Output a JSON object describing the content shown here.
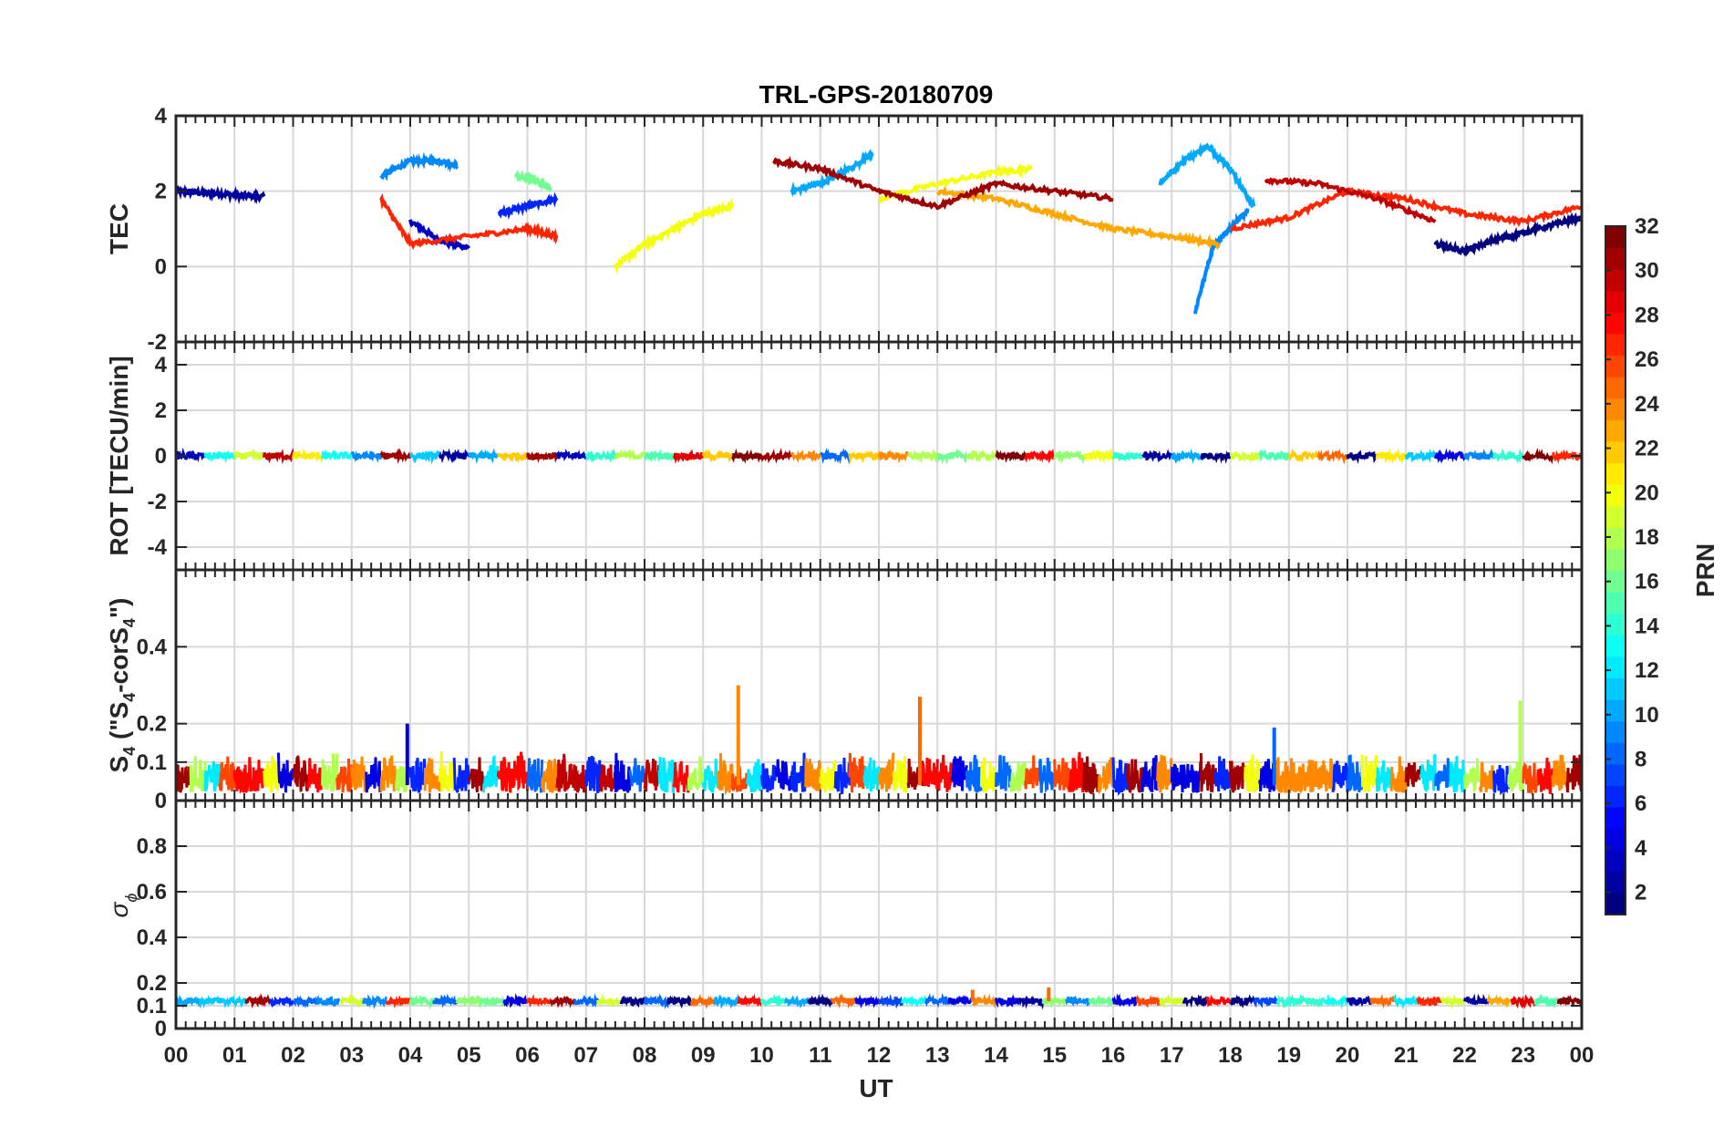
{
  "chart_data": {
    "type": "line",
    "title": "TRL-GPS-20180709",
    "xlabel": "UT",
    "x_ticks": [
      "00",
      "01",
      "02",
      "03",
      "04",
      "05",
      "06",
      "07",
      "08",
      "09",
      "10",
      "11",
      "12",
      "13",
      "14",
      "15",
      "16",
      "17",
      "18",
      "19",
      "20",
      "21",
      "22",
      "23",
      "00"
    ],
    "x_range_hours": [
      0,
      24
    ],
    "grid": true,
    "panels": [
      {
        "name": "TEC",
        "ylabel": "TEC",
        "ylim": [
          -2,
          4
        ],
        "y_ticks": [
          "-2",
          "0",
          "2",
          "4"
        ],
        "y_tick_values": [
          -2,
          0,
          2,
          4
        ],
        "series": [
          {
            "prn": 2,
            "x": [
              0,
              0.5,
              1,
              1.5
            ],
            "y": [
              2.0,
              1.95,
              1.9,
              1.85
            ]
          },
          {
            "prn": 3,
            "x": [
              4.0,
              4.5,
              5.0
            ],
            "y": [
              1.2,
              0.7,
              0.5
            ]
          },
          {
            "prn": 6,
            "x": [
              5.5,
              6.0,
              6.5
            ],
            "y": [
              1.4,
              1.6,
              1.8
            ]
          },
          {
            "prn": 9,
            "x": [
              3.5,
              4.0,
              4.5,
              4.8
            ],
            "y": [
              2.4,
              2.8,
              2.8,
              2.7
            ]
          },
          {
            "prn": 10,
            "x": [
              10.5,
              11.0,
              11.5,
              11.9
            ],
            "y": [
              2.0,
              2.2,
              2.6,
              3.0
            ]
          },
          {
            "prn": 9,
            "x": [
              17.4,
              17.7,
              18.0,
              18.3
            ],
            "y": [
              -1.2,
              0.5,
              1.0,
              1.5
            ]
          },
          {
            "prn": 10,
            "x": [
              16.8,
              17.2,
              17.6,
              18.0,
              18.4
            ],
            "y": [
              2.2,
              2.8,
              3.2,
              2.6,
              1.6
            ]
          },
          {
            "prn": 16,
            "x": [
              5.8,
              6.1,
              6.4
            ],
            "y": [
              2.4,
              2.3,
              2.1
            ]
          },
          {
            "prn": 20,
            "x": [
              7.5,
              8.0,
              8.5,
              9.0,
              9.5
            ],
            "y": [
              0.0,
              0.6,
              1.0,
              1.4,
              1.6
            ]
          },
          {
            "prn": 20,
            "x": [
              12.0,
              13.0,
              14.0,
              14.6
            ],
            "y": [
              1.8,
              2.2,
              2.5,
              2.6
            ]
          },
          {
            "prn": 23,
            "x": [
              13.0,
              14.0,
              15.0,
              16.0,
              17.0,
              17.8
            ],
            "y": [
              2.0,
              1.8,
              1.4,
              1.0,
              0.8,
              0.6
            ]
          },
          {
            "prn": 27,
            "x": [
              3.5,
              4.0,
              5.0,
              6.0,
              6.5
            ],
            "y": [
              1.8,
              0.6,
              0.8,
              1.0,
              0.8
            ]
          },
          {
            "prn": 27,
            "x": [
              18.0,
              19.0,
              20.0,
              21.0,
              22.0,
              23.0,
              24.0
            ],
            "y": [
              1.0,
              1.3,
              2.0,
              1.8,
              1.4,
              1.2,
              1.6
            ]
          },
          {
            "prn": 30,
            "x": [
              18.6,
              19.5,
              20.5,
              21.5
            ],
            "y": [
              2.3,
              2.2,
              1.8,
              1.2
            ]
          },
          {
            "prn": 31,
            "x": [
              10.2,
              11.0,
              12.0,
              13.0,
              14.0,
              15.0,
              16.0
            ],
            "y": [
              2.8,
              2.6,
              2.0,
              1.6,
              2.2,
              2.0,
              1.8
            ]
          },
          {
            "prn": 1,
            "x": [
              21.5,
              22.0,
              22.5,
              23.0,
              23.5,
              24.0
            ],
            "y": [
              0.6,
              0.4,
              0.7,
              0.9,
              1.1,
              1.3
            ]
          }
        ]
      },
      {
        "name": "ROT",
        "ylabel": "ROT [TECU/min]",
        "ylim": [
          -5,
          5
        ],
        "y_ticks": [
          "-4",
          "-2",
          "0",
          "2",
          "4"
        ],
        "y_tick_values": [
          -4,
          -2,
          0,
          2,
          4
        ],
        "baseline": 0
      },
      {
        "name": "S4",
        "ylabel": "S4 (\"S4-corS4\")",
        "ylabel_parts": [
          "S",
          "4",
          " (\"S",
          "4",
          "-corS",
          "4",
          "\")"
        ],
        "ylim": [
          0,
          0.6
        ],
        "y_ticks": [
          "0",
          "0.1",
          "0.2",
          "0.4"
        ],
        "y_tick_values": [
          0,
          0.1,
          0.2,
          0.4
        ],
        "typical_range": [
          0.02,
          0.12
        ],
        "spikes": [
          {
            "x": 3.95,
            "y": 0.2,
            "prn": 4
          },
          {
            "x": 9.6,
            "y": 0.3,
            "prn": 24
          },
          {
            "x": 12.7,
            "y": 0.27,
            "prn": 25
          },
          {
            "x": 18.75,
            "y": 0.19,
            "prn": 8
          },
          {
            "x": 22.95,
            "y": 0.26,
            "prn": 18
          }
        ]
      },
      {
        "name": "sigma_phi",
        "ylabel": "σ ϕ",
        "ylim": [
          0,
          1
        ],
        "y_ticks": [
          "0",
          "0.1",
          "0.2",
          "0.4",
          "0.6",
          "0.8"
        ],
        "y_tick_values": [
          0,
          0.1,
          0.2,
          0.4,
          0.6,
          0.8
        ],
        "baseline": 0.12,
        "spikes": [
          {
            "x": 13.6,
            "y": 0.17,
            "prn": 25
          },
          {
            "x": 14.9,
            "y": 0.18,
            "prn": 25
          }
        ]
      }
    ],
    "colorbar": {
      "label": "PRN",
      "range": [
        1,
        32
      ],
      "ticks": [
        "2",
        "4",
        "6",
        "8",
        "10",
        "12",
        "14",
        "16",
        "18",
        "20",
        "22",
        "24",
        "26",
        "28",
        "30",
        "32"
      ],
      "colormap": "jet",
      "colors": [
        "#00008f",
        "#0000ff",
        "#0080ff",
        "#00ffff",
        "#80ff80",
        "#ffff00",
        "#ff8000",
        "#ff0000",
        "#800000"
      ]
    }
  }
}
